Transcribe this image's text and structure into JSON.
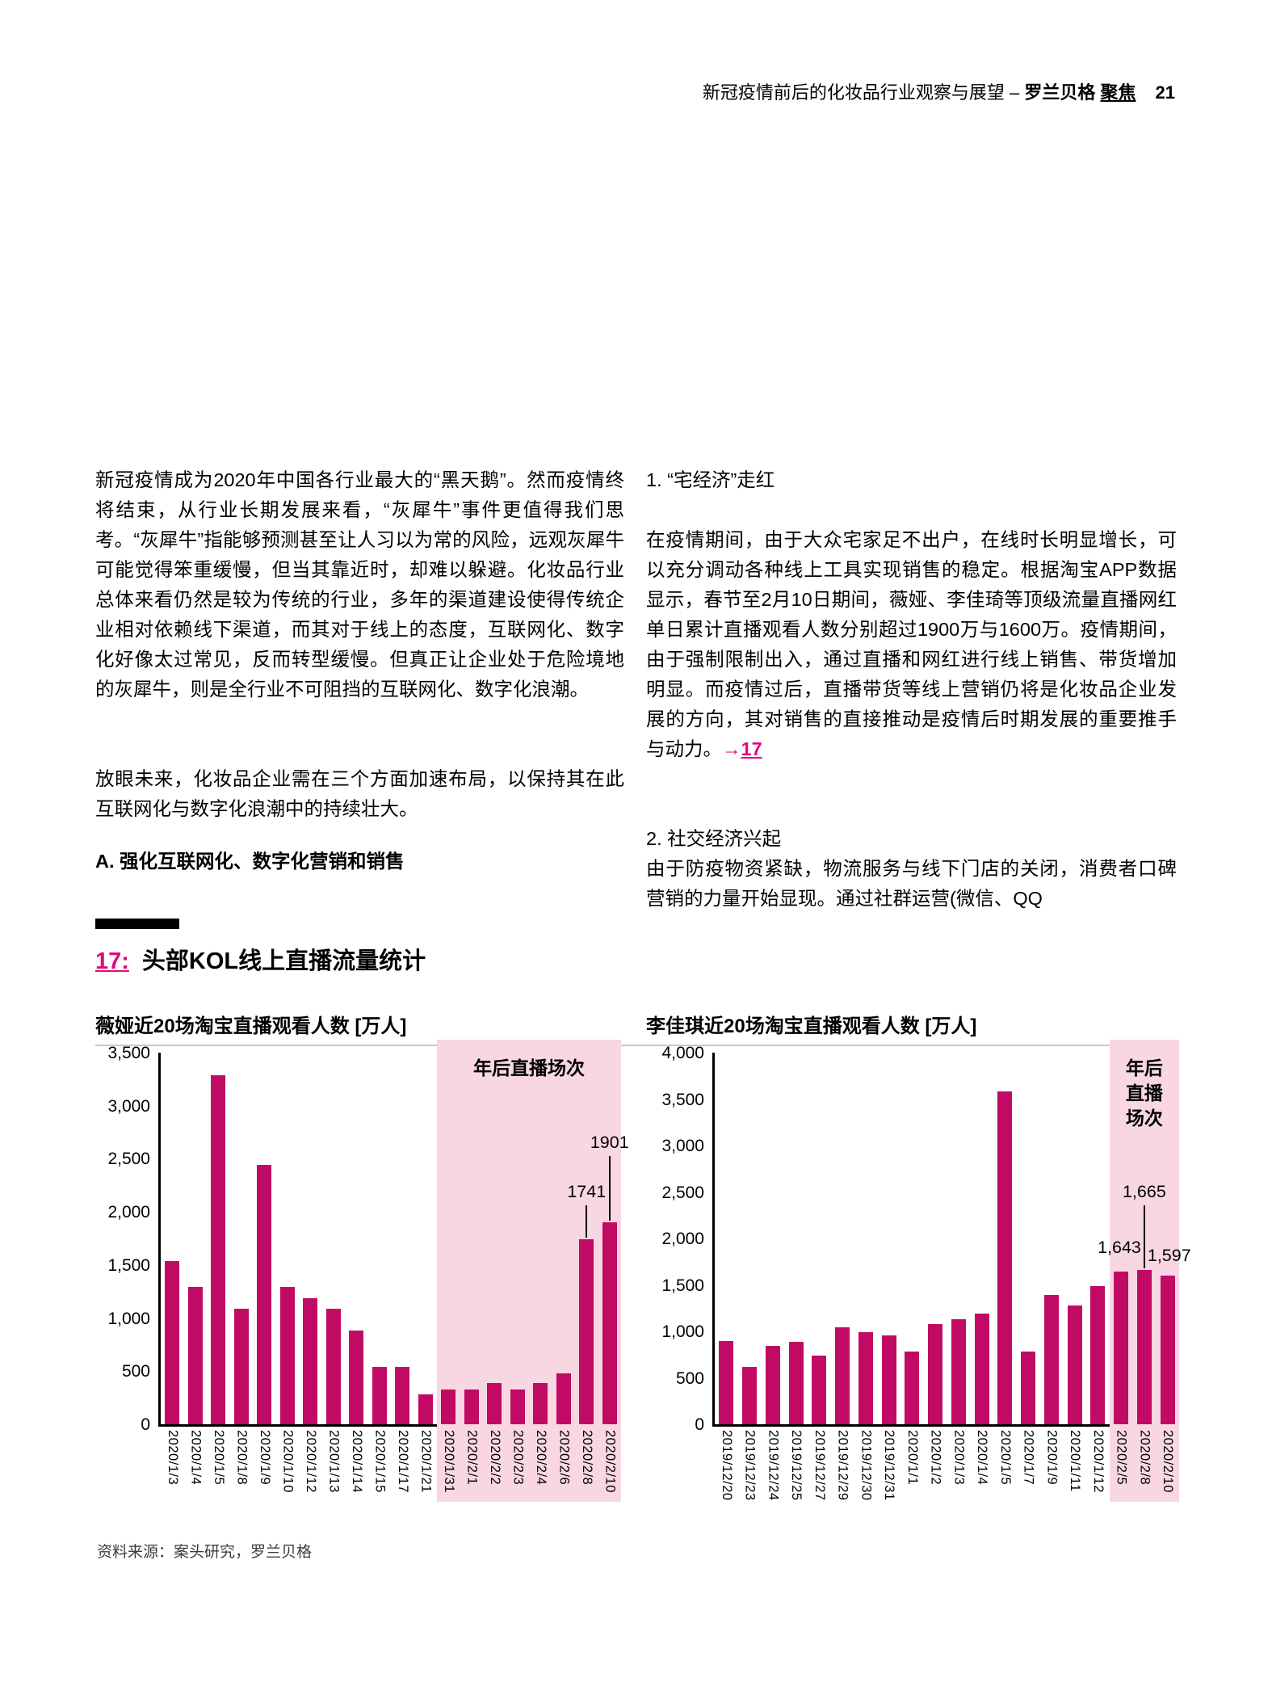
{
  "colors": {
    "accent": "#E5077E",
    "bar": "#C10A63",
    "band": "#F8D7E2"
  },
  "header": {
    "title_regular": "新冠疫情前后的化妆品行业观察与展望 – ",
    "brand_bold": "罗兰贝格 ",
    "brand_underlined": "聚焦",
    "page_number": "21"
  },
  "left_column": {
    "p1": "新冠疫情成为2020年中国各行业最大的“黑天鹅”。然而疫情终将结束，从行业长期发展来看，“灰犀牛”事件更值得我们思考。“灰犀牛”指能够预测甚至让人习以为常的风险，远观灰犀牛可能觉得笨重缓慢，但当其靠近时，却难以躲避。化妆品行业总体来看仍然是较为传统的行业，多年的渠道建设使得传统企业相对依赖线下渠道，而其对于线上的态度，互联网化、数字化好像太过常见，反而转型缓慢。但真正让企业处于危险境地的灰犀牛，则是全行业不可阻挡的互联网化、数字化浪潮。",
    "p2": "放眼未来，化妆品企业需在三个方面加速布局，以保持其在此互联网化与数字化浪潮中的持续壮大。",
    "heading_a": "A. 强化互联网化、数字化营销和销售"
  },
  "right_column": {
    "h1": "1. “宅经济”走红",
    "p1": "在疫情期间，由于大众宅家足不出户，在线时长明显增长，可以充分调动各种线上工具实现销售的稳定。根据淘宝APP数据显示，春节至2月10日期间，薇娅、李佳琦等顶级流量直播网红单日累计直播观看人数分别超过1900万与1600万。疫情期间，由于强制限制出入，通过直播和网红进行线上销售、带货增加明显。而疫情过后，直播带货等线上营销仍将是化妆品企业发展的方向，其对销售的直接推动是疫情后时期发展的重要推手与动力。",
    "link_arrow": "→",
    "link_text": "17",
    "h2": "2. 社交经济兴起",
    "p2": "由于防疫物资紧缺，物流服务与线下门店的关闭，消费者口碑营销的力量开始显现。通过社群运营(微信、QQ"
  },
  "figure": {
    "number": "17:",
    "title": "头部KOL线上直播流量统计",
    "source": "资料来源：案头研究，罗兰贝格"
  },
  "chart_data": [
    {
      "type": "bar",
      "title": "薇娅近20场淘宝直播观看人数  [万人]",
      "ylabel": "万人",
      "categories": [
        "2020/1/3",
        "2020/1/4",
        "2020/1/5",
        "2020/1/8",
        "2020/1/9",
        "2020/1/10",
        "2020/1/12",
        "2020/1/13",
        "2020/1/14",
        "2020/1/15",
        "2020/1/17",
        "2020/1/21",
        "2020/1/31",
        "2020/2/1",
        "2020/2/2",
        "2020/2/3",
        "2020/2/4",
        "2020/2/6",
        "2020/2/8",
        "2020/2/10"
      ],
      "values": [
        1540,
        1290,
        3290,
        1090,
        2440,
        1290,
        1190,
        1090,
        880,
        540,
        540,
        280,
        330,
        330,
        390,
        330,
        390,
        480,
        1741,
        1901
      ],
      "ylim": [
        0,
        3500
      ],
      "ytick_step": 500,
      "ytick_labels": [
        "0",
        "500",
        "1,000",
        "1,500",
        "2,000",
        "2,500",
        "3,000",
        "3,500"
      ],
      "grid": false,
      "highlight": {
        "start_index": 12,
        "label_lines": [
          "年后直播场次"
        ]
      },
      "callouts": [
        {
          "text": "1741",
          "bar": 18,
          "align": "center",
          "line": 40
        },
        {
          "text": "1901",
          "bar": 19,
          "align": "center",
          "line": 80
        }
      ]
    },
    {
      "type": "bar",
      "title": "李佳琪近20场淘宝直播观看人数  [万人]",
      "ylabel": "万人",
      "categories": [
        "2019/12/20",
        "2019/12/23",
        "2019/12/24",
        "2019/12/25",
        "2019/12/27",
        "2019/12/29",
        "2019/12/30",
        "2019/12/31",
        "2020/1/1",
        "2020/1/2",
        "2020/1/3",
        "2020/1/4",
        "2020/1/5",
        "2020/1/7",
        "2020/1/9",
        "2020/1/11",
        "2020/1/12",
        "2020/2/5",
        "2020/2/8",
        "2020/2/10"
      ],
      "values": [
        900,
        620,
        840,
        890,
        740,
        1040,
        990,
        960,
        780,
        1080,
        1130,
        1190,
        3580,
        780,
        1390,
        1280,
        1490,
        1643,
        1665,
        1597
      ],
      "ylim": [
        0,
        4000
      ],
      "ytick_step": 500,
      "ytick_labels": [
        "0",
        "500",
        "1,000",
        "1,500",
        "2,000",
        "2,500",
        "3,000",
        "3,500",
        "4,000"
      ],
      "grid": false,
      "highlight": {
        "start_index": 17,
        "label_lines": [
          "年后",
          "直播",
          "场次"
        ]
      },
      "callouts": [
        {
          "text": "1,665",
          "bar": 18,
          "align": "center",
          "line": 78
        },
        {
          "text": "1,643",
          "bar": 18,
          "align": "left",
          "bottom": 206
        },
        {
          "text": "1,597",
          "bar": 18,
          "align": "right",
          "bottom": 196
        }
      ]
    }
  ]
}
